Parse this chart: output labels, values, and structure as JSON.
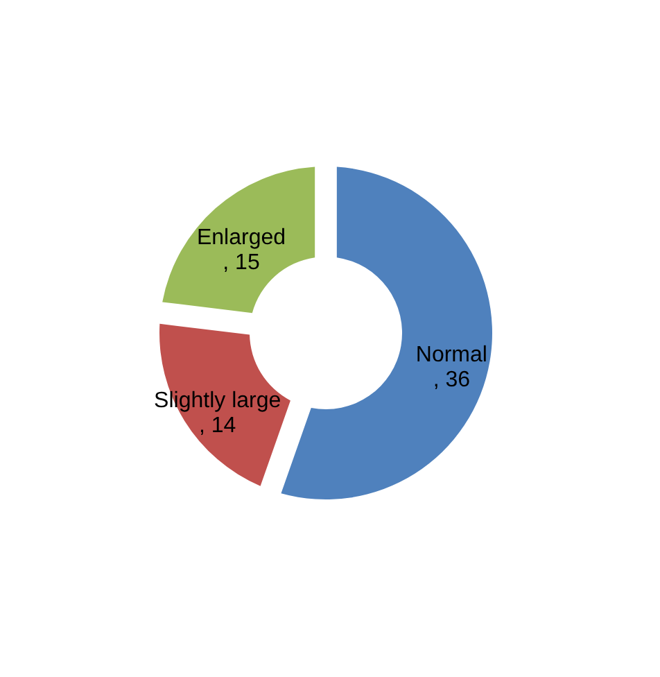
{
  "chart_data": {
    "type": "donut",
    "categories": [
      "Normal",
      "Slightly large",
      "Enlarged"
    ],
    "values": [
      36,
      14,
      15
    ],
    "value_labels": [
      ", 36",
      ", 14",
      ", 15"
    ],
    "colors": [
      "#4f81bd",
      "#c0504d",
      "#9bbb59"
    ],
    "legend": false
  }
}
